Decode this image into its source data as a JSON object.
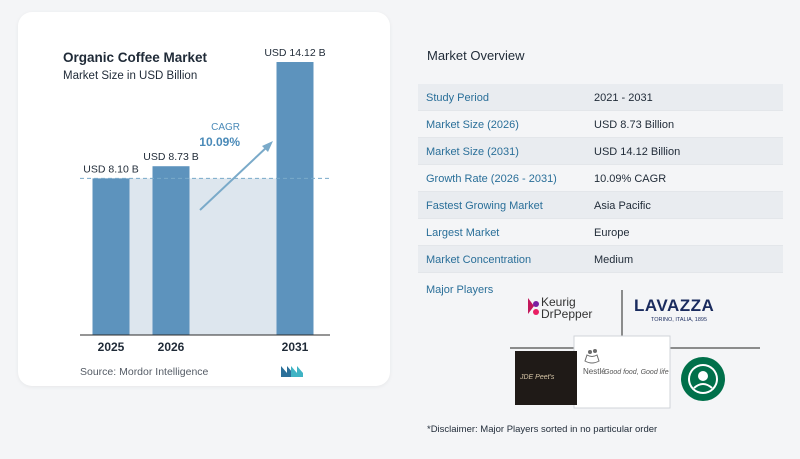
{
  "chart_data": {
    "type": "bar",
    "title": "Organic Coffee Market",
    "subtitle": "Market Size in USD Billion",
    "categories": [
      "2025",
      "2026",
      "2031"
    ],
    "values": [
      8.1,
      8.73,
      14.12
    ],
    "data_labels": [
      "USD 8.10 B",
      "USD 8.73 B",
      "USD 14.12 B"
    ],
    "cagr_label": "CAGR",
    "cagr_value": "10.09%",
    "ylim": [
      0,
      15
    ],
    "bar_color": "#5d93bd",
    "shade_color": "#dde6ee",
    "arrow_color": "#7aaac9",
    "grid": false
  },
  "source": "Source:  Mordor Intelligence",
  "overview": {
    "title": "Market Overview",
    "rows": [
      {
        "label": "Study Period",
        "value": "2021 - 2031"
      },
      {
        "label": "Market Size (2026)",
        "value": "USD 8.73 Billion"
      },
      {
        "label": "Market Size (2031)",
        "value": "USD 14.12 Billion"
      },
      {
        "label": "Growth Rate (2026 - 2031)",
        "value": "10.09% CAGR"
      },
      {
        "label": "Fastest Growing Market",
        "value": "Asia Pacific"
      },
      {
        "label": "Largest Market",
        "value": "Europe"
      },
      {
        "label": "Market Concentration",
        "value": "Medium"
      }
    ]
  },
  "major_players": {
    "label": "Major Players",
    "logos": {
      "keurig_1": "Keurig",
      "keurig_2": "DrPepper",
      "lavazza": "LAVAZZA",
      "lavazza_sub": "TORINO, ITALIA, 1895",
      "jde": "JDE Peet's",
      "nestle": "Nestlé",
      "nestle_tag": "Good food, Good life"
    }
  },
  "disclaimer": "*Disclaimer: Major Players sorted in no particular order"
}
